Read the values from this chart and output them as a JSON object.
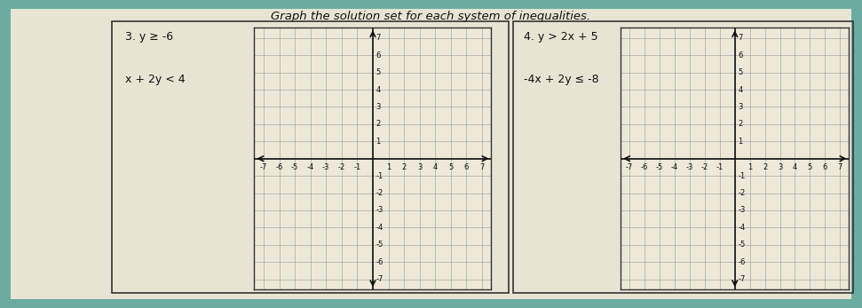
{
  "title": "Graph the solution set for each system of inequalities.",
  "problem3_line1": "3. y ≥ -6",
  "problem3_line2": "x + 2y < 4",
  "problem4_line1": "4. y > 2x + 5",
  "problem4_line2": "-4x + 2y ≤ -8",
  "tick_values": [
    -7,
    -6,
    -5,
    -4,
    -3,
    -2,
    -1,
    1,
    2,
    3,
    4,
    5,
    6,
    7
  ],
  "grid_color": "#999999",
  "axis_color": "#111111",
  "grid_bg": "#ede8d8",
  "paper_color": "#dde8e0",
  "white_area_color": "#e8e4d4",
  "teal_bg": "#6aada0",
  "text_color": "#111111",
  "border_color": "#333333",
  "title_fontsize": 9.5,
  "label_fontsize": 9,
  "tick_fontsize": 6.0
}
